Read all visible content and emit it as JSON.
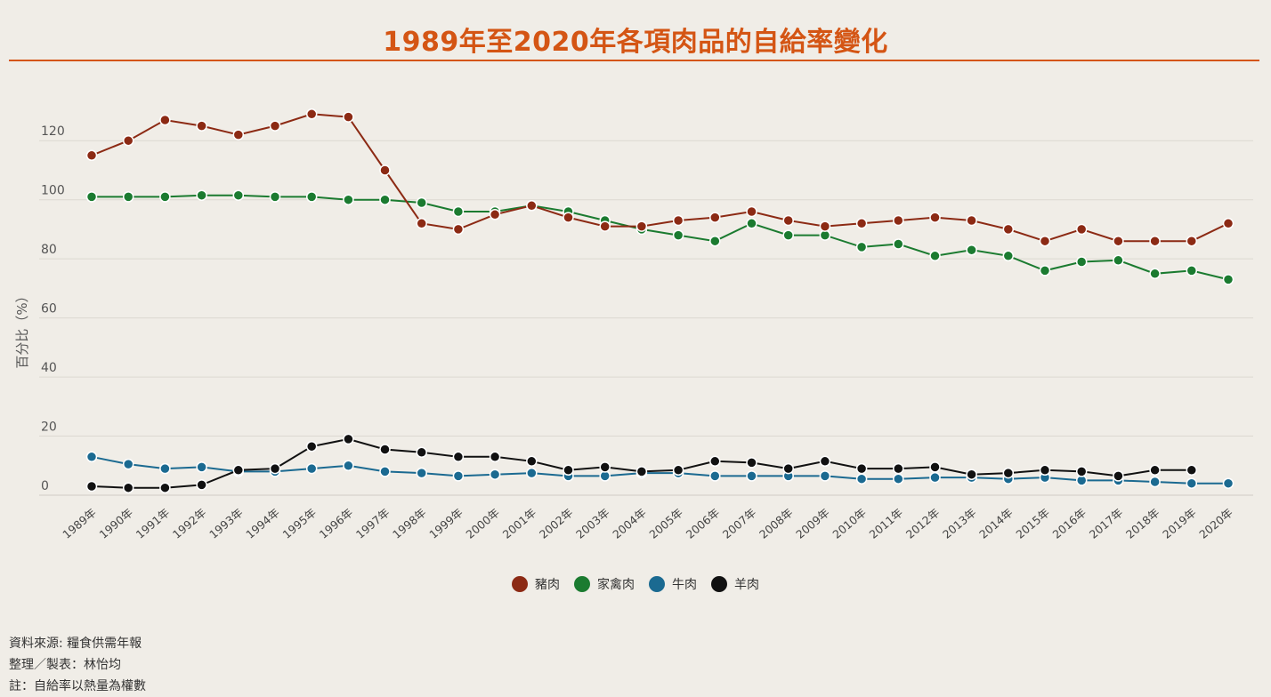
{
  "chart_data": {
    "type": "line",
    "title": "1989年至2020年各項肉品的自給率變化",
    "xlabel": "",
    "ylabel": "百分比（%）",
    "ylim": [
      0,
      140
    ],
    "yticks": [
      0,
      20,
      40,
      60,
      80,
      100,
      120
    ],
    "grid": true,
    "legend_position": "bottom-center",
    "categories": [
      "1989年",
      "1990年",
      "1991年",
      "1992年",
      "1993年",
      "1994年",
      "1995年",
      "1996年",
      "1997年",
      "1998年",
      "1999年",
      "2000年",
      "2001年",
      "2002年",
      "2003年",
      "2004年",
      "2005年",
      "2006年",
      "2007年",
      "2008年",
      "2009年",
      "2010年",
      "2011年",
      "2012年",
      "2013年",
      "2014年",
      "2015年",
      "2016年",
      "2017年",
      "2018年",
      "2019年",
      "2020年"
    ],
    "series": [
      {
        "name": "豬肉",
        "color": "#8c2a14",
        "values": [
          115,
          120,
          127,
          125,
          122,
          125,
          129,
          128,
          110,
          92,
          90,
          95,
          98,
          94,
          91,
          91,
          93,
          94,
          96,
          93,
          91,
          92,
          93,
          94,
          93,
          90,
          86,
          90,
          86,
          86,
          86,
          92
        ]
      },
      {
        "name": "家禽肉",
        "color": "#1b7b30",
        "values": [
          101,
          101,
          101,
          101.5,
          101.5,
          101,
          101,
          100,
          100,
          99,
          96,
          96,
          98,
          96,
          93,
          90,
          88,
          86,
          92,
          88,
          88,
          84,
          85,
          81,
          83,
          81,
          76,
          79,
          79.5,
          75,
          76,
          73
        ]
      },
      {
        "name": "牛肉",
        "color": "#1b6a91",
        "values": [
          13,
          10.5,
          9,
          9.5,
          8,
          8,
          9,
          10,
          8,
          7.5,
          6.5,
          7,
          7.5,
          6.5,
          6.5,
          7.5,
          7.5,
          6.5,
          6.5,
          6.5,
          6.5,
          5.5,
          5.5,
          6,
          6,
          5.5,
          6,
          5,
          5,
          4.5,
          4,
          4
        ]
      },
      {
        "name": "羊肉",
        "color": "#111111",
        "values": [
          3,
          2.5,
          2.5,
          3.5,
          8.5,
          9,
          16.5,
          19,
          15.5,
          14.5,
          13,
          13,
          11.5,
          8.5,
          9.5,
          8,
          8.5,
          11.5,
          11,
          9,
          11.5,
          9,
          9,
          9.5,
          7,
          7.5,
          8.5,
          8,
          6.5,
          8.5,
          8.5,
          null
        ]
      }
    ]
  },
  "footnotes": {
    "source": "資料來源: 糧食供需年報",
    "author": "整理／製表：林怡均",
    "note": "註：自給率以熱量為權數"
  }
}
